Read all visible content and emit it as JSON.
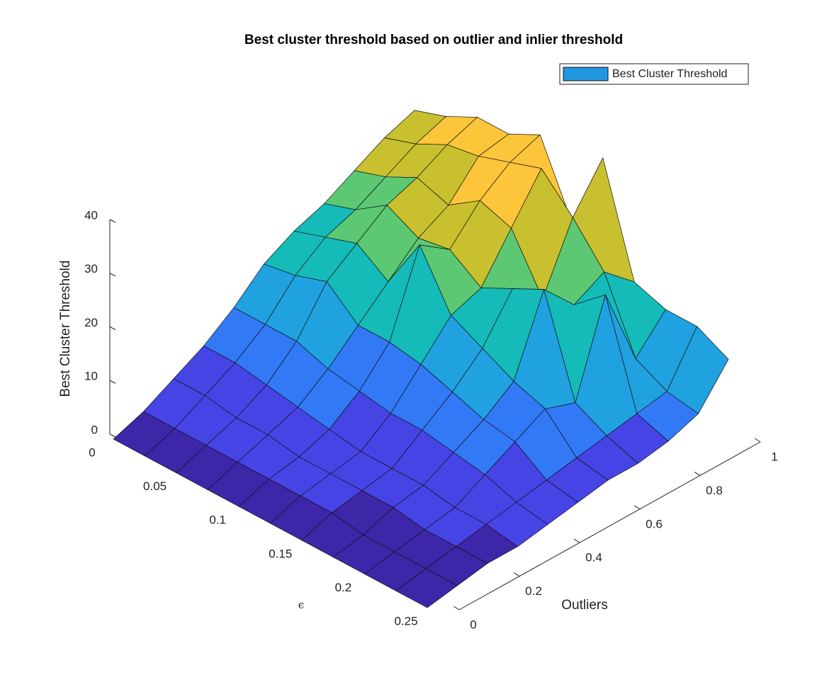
{
  "chart_data": {
    "type": "surface",
    "title": "Best cluster threshold based on outlier and inlier threshold",
    "xlabel": "Outliers",
    "ylabel": "ϵ",
    "zlabel": "Best Cluster Threshold",
    "name": "Best Cluster Threshold",
    "color": "#2196e0",
    "legend": "northeast",
    "x": [
      0,
      0.1,
      0.2,
      0.3,
      0.4,
      0.5,
      0.6,
      0.7,
      0.8,
      0.9,
      1
    ],
    "y": [
      0,
      0.025,
      0.05,
      0.075,
      0.1,
      0.125,
      0.15,
      0.175,
      0.2,
      0.225,
      0.25
    ],
    "z": [
      [
        0,
        2,
        5,
        8,
        12,
        17,
        20,
        22,
        25,
        28,
        30
      ],
      [
        0,
        2,
        5,
        8,
        12,
        18,
        22,
        24,
        27,
        30,
        32
      ],
      [
        0,
        2,
        4,
        7,
        12,
        20,
        24,
        28,
        30,
        33,
        35
      ],
      [
        0,
        2,
        4,
        6,
        10,
        15,
        20,
        25,
        28,
        34,
        35
      ],
      [
        0,
        2,
        3,
        5,
        9,
        15,
        30,
        26,
        32,
        36,
        38
      ],
      [
        0,
        2,
        3,
        4,
        8,
        14,
        20,
        22,
        30,
        38,
        25
      ],
      [
        0,
        2,
        3,
        4,
        8,
        12,
        17,
        25,
        20,
        32,
        40
      ],
      [
        0,
        1,
        3,
        4,
        7,
        10,
        14,
        28,
        22,
        25,
        20
      ],
      [
        0,
        1,
        2,
        3,
        6,
        9,
        12,
        10,
        27,
        12,
        18
      ],
      [
        0,
        1,
        2,
        3,
        4,
        5,
        6,
        7,
        8,
        9,
        18
      ],
      [
        0,
        1,
        2,
        2,
        3,
        4,
        5,
        5,
        6,
        8,
        15
      ]
    ],
    "xlim": [
      0,
      1
    ],
    "ylim": [
      0,
      0.25
    ],
    "zlim": [
      0,
      40
    ],
    "xticks": [
      0,
      0.2,
      0.4,
      0.6,
      0.8,
      1
    ],
    "yticks": [
      0,
      0.05,
      0.1,
      0.15,
      0.2,
      0.25
    ],
    "zticks": [
      0,
      10,
      20,
      30,
      40
    ],
    "colormap": [
      "#3e26a8",
      "#4744e6",
      "#3279f6",
      "#20a1e0",
      "#14bbb8",
      "#5cc874",
      "#c8c02e",
      "#fdc53a",
      "#f9fb15"
    ]
  }
}
